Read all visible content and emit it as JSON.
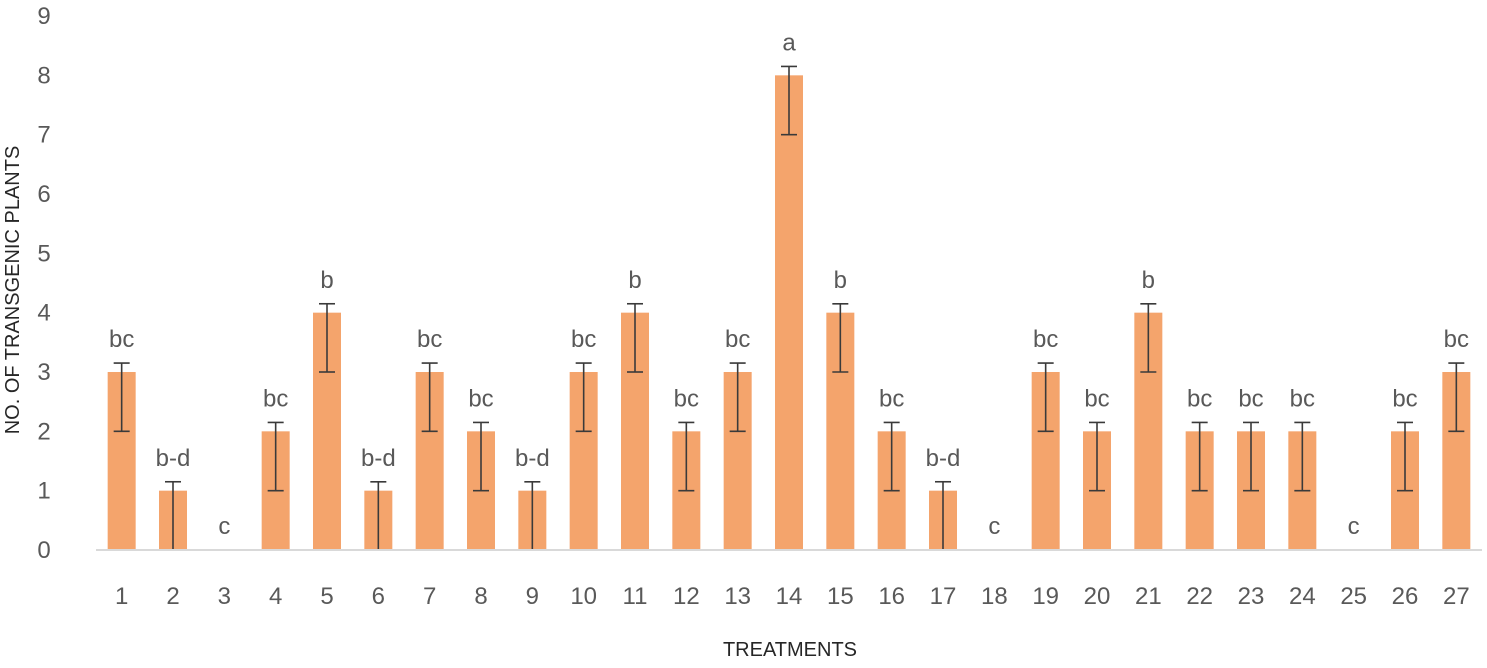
{
  "chart_data": {
    "type": "bar",
    "title": "",
    "xlabel": "TREATMENTS",
    "ylabel": "NO. OF TRANSGENIC PLANTS",
    "ylim": [
      0,
      9
    ],
    "yticks": [
      0,
      1,
      2,
      3,
      4,
      5,
      6,
      7,
      8,
      9
    ],
    "grid": false,
    "legend": "none",
    "bar_color": "#F4A46C",
    "error_bar_color": "#3a3a3a",
    "categories": [
      "1",
      "2",
      "3",
      "4",
      "5",
      "6",
      "7",
      "8",
      "9",
      "10",
      "11",
      "12",
      "13",
      "14",
      "15",
      "16",
      "17",
      "18",
      "19",
      "20",
      "21",
      "22",
      "23",
      "24",
      "25",
      "26",
      "27"
    ],
    "values": [
      3,
      1,
      0,
      2,
      4,
      1,
      3,
      2,
      1,
      3,
      4,
      2,
      3,
      8,
      4,
      2,
      1,
      0,
      3,
      2,
      4,
      2,
      2,
      2,
      0,
      2,
      3
    ],
    "error_lower": [
      1,
      1,
      0,
      1,
      1,
      1,
      1,
      1,
      1,
      1,
      1,
      1,
      1,
      1,
      1,
      1,
      1,
      0,
      1,
      1,
      1,
      1,
      1,
      1,
      0,
      1,
      1
    ],
    "error_upper": [
      0.15,
      0.15,
      0,
      0.15,
      0.15,
      0.15,
      0.15,
      0.15,
      0.15,
      0.15,
      0.15,
      0.15,
      0.15,
      0.15,
      0.15,
      0.15,
      0.15,
      0,
      0.15,
      0.15,
      0.15,
      0.15,
      0.15,
      0.15,
      0,
      0.15,
      0.15
    ],
    "significance_labels": [
      "bc",
      "b-d",
      "c",
      "bc",
      "b",
      "b-d",
      "bc",
      "bc",
      "b-d",
      "bc",
      "b",
      "bc",
      "bc",
      "a",
      "b",
      "bc",
      "b-d",
      "c",
      "bc",
      "bc",
      "b",
      "bc",
      "bc",
      "bc",
      "c",
      "bc",
      "bc"
    ]
  }
}
